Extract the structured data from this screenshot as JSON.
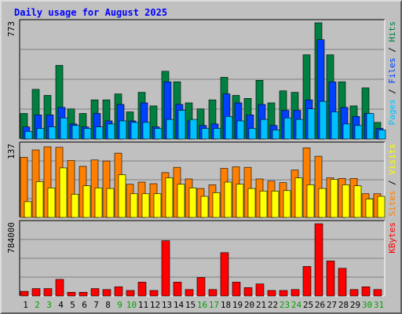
{
  "chart_data": {
    "type": "bar",
    "title": "Daily usage for August 2025",
    "days": [
      "1",
      "2",
      "3",
      "4",
      "5",
      "6",
      "7",
      "8",
      "9",
      "10",
      "11",
      "12",
      "13",
      "14",
      "15",
      "16",
      "17",
      "18",
      "19",
      "20",
      "21",
      "22",
      "23",
      "24",
      "25",
      "26",
      "27",
      "28",
      "29",
      "30",
      "31"
    ],
    "weekend_days": [
      "2",
      "3",
      "9",
      "10",
      "16",
      "17",
      "23",
      "24",
      "30",
      "31"
    ],
    "colors": {
      "pages": "#00c0ff",
      "files": "#0040ff",
      "hits": "#008040",
      "visits": "#ffff00",
      "sites": "#ff8000",
      "kbytes": "#ff0000",
      "weekday_label": "#000000",
      "weekend_label": "#00a000",
      "title": "#0000ff",
      "background": "#c0c0c0",
      "grid": "#808080"
    },
    "panels": [
      {
        "id": "hits",
        "max_label": "773",
        "ymax": 773,
        "legend": [
          {
            "text": "Pages",
            "color": "#00c0ff"
          },
          {
            "text": " / ",
            "color": "#000000"
          },
          {
            "text": "Files",
            "color": "#0040ff"
          },
          {
            "text": " / ",
            "color": "#000000"
          },
          {
            "text": "Hits",
            "color": "#008040"
          }
        ],
        "series": [
          {
            "name": "Hits",
            "color": "#008040",
            "values": [
              170,
              330,
              290,
              490,
              200,
              170,
              260,
              260,
              300,
              180,
              310,
              220,
              450,
              380,
              240,
              200,
              260,
              410,
              290,
              270,
              390,
              240,
              320,
              310,
              560,
              773,
              560,
              380,
              220,
              340,
              110
            ]
          },
          {
            "name": "Files",
            "color": "#0040ff",
            "values": [
              80,
              160,
              160,
              210,
              100,
              80,
              170,
              120,
              230,
              120,
              240,
              80,
              380,
              230,
              120,
              90,
              100,
              300,
              240,
              160,
              230,
              90,
              190,
              190,
              260,
              660,
              380,
              210,
              150,
              170,
              70
            ]
          },
          {
            "name": "Pages",
            "color": "#00c0ff",
            "values": [
              50,
              70,
              80,
              140,
              90,
              70,
              80,
              100,
              120,
              110,
              110,
              70,
              130,
              190,
              130,
              70,
              70,
              150,
              120,
              70,
              130,
              60,
              140,
              130,
              200,
              250,
              180,
              100,
              90,
              170,
              60
            ]
          }
        ]
      },
      {
        "id": "visits",
        "max_label": "137",
        "ymax": 137,
        "legend": [
          {
            "text": "Sites",
            "color": "#ff8000"
          },
          {
            "text": " / ",
            "color": "#000000"
          },
          {
            "text": "Visits",
            "color": "#ffff00"
          }
        ],
        "series": [
          {
            "name": "Sites",
            "color": "#ff8000",
            "values": [
              114,
              128,
              134,
              133,
              108,
              97,
              109,
              107,
              122,
              63,
              67,
              64,
              85,
              95,
              73,
              55,
              62,
              93,
              96,
              95,
              73,
              69,
              66,
              90,
              132,
              116,
              75,
              74,
              74,
              45,
              45
            ]
          },
          {
            "name": "Visits",
            "color": "#ffff00",
            "values": [
              30,
              68,
              56,
              94,
              44,
              60,
              56,
              55,
              81,
              45,
              45,
              45,
              75,
              63,
              56,
              40,
              47,
              67,
              63,
              55,
              50,
              50,
              51,
              75,
              62,
              55,
              72,
              62,
              60,
              35,
              40
            ]
          }
        ]
      },
      {
        "id": "kbytes",
        "max_label": "784000",
        "ymax": 784000,
        "legend": [
          {
            "text": "KBytes",
            "color": "#ff0000"
          }
        ],
        "series": [
          {
            "name": "KBytes",
            "color": "#ff0000",
            "values": [
              50000,
              80000,
              80000,
              180000,
              40000,
              40000,
              80000,
              70000,
              100000,
              60000,
              150000,
              60000,
              600000,
              150000,
              70000,
              200000,
              70000,
              470000,
              150000,
              90000,
              130000,
              60000,
              60000,
              70000,
              320000,
              784000,
              380000,
              300000,
              70000,
              100000,
              70000
            ]
          }
        ]
      }
    ]
  }
}
